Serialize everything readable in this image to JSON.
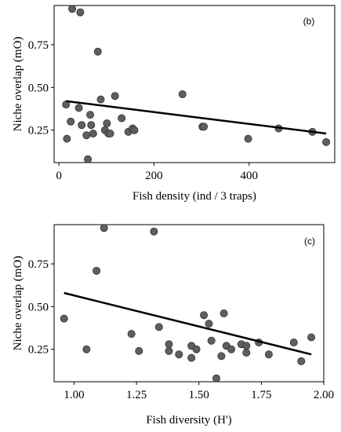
{
  "chart_data": [
    {
      "type": "scatter",
      "panel_label": "(b)",
      "xlabel": "Fish density (ind / 3 traps)",
      "ylabel": "Niche overlap (mO)",
      "xlim": [
        -10,
        580
      ],
      "ylim": [
        0.06,
        0.98
      ],
      "x_ticks": [
        0,
        200,
        400
      ],
      "x_tick_labels": [
        "0",
        "200",
        "400"
      ],
      "y_ticks": [
        0.25,
        0.5,
        0.75
      ],
      "y_tick_labels": [
        "0.25",
        "0.50",
        "0.75"
      ],
      "grid": false,
      "point_color": "#5f5f5f",
      "line_color": "#000000",
      "points": [
        {
          "x": 15,
          "y": 0.4
        },
        {
          "x": 17,
          "y": 0.2
        },
        {
          "x": 25,
          "y": 0.3
        },
        {
          "x": 28,
          "y": 0.96
        },
        {
          "x": 42,
          "y": 0.38
        },
        {
          "x": 45,
          "y": 0.94
        },
        {
          "x": 48,
          "y": 0.28
        },
        {
          "x": 58,
          "y": 0.22
        },
        {
          "x": 61,
          "y": 0.08
        },
        {
          "x": 66,
          "y": 0.34
        },
        {
          "x": 68,
          "y": 0.28
        },
        {
          "x": 72,
          "y": 0.23
        },
        {
          "x": 82,
          "y": 0.71
        },
        {
          "x": 88,
          "y": 0.43
        },
        {
          "x": 97,
          "y": 0.25
        },
        {
          "x": 101,
          "y": 0.29
        },
        {
          "x": 104,
          "y": 0.23
        },
        {
          "x": 108,
          "y": 0.23
        },
        {
          "x": 118,
          "y": 0.45
        },
        {
          "x": 132,
          "y": 0.32
        },
        {
          "x": 146,
          "y": 0.24
        },
        {
          "x": 155,
          "y": 0.26
        },
        {
          "x": 159,
          "y": 0.25
        },
        {
          "x": 260,
          "y": 0.46
        },
        {
          "x": 302,
          "y": 0.27
        },
        {
          "x": 305,
          "y": 0.27
        },
        {
          "x": 398,
          "y": 0.2
        },
        {
          "x": 462,
          "y": 0.26
        },
        {
          "x": 533,
          "y": 0.24
        },
        {
          "x": 562,
          "y": 0.18
        }
      ],
      "fit_line": {
        "x": [
          15,
          562
        ],
        "y": [
          0.42,
          0.23
        ]
      }
    },
    {
      "type": "scatter",
      "panel_label": "(c)",
      "xlabel": "Fish diversity (H')",
      "ylabel": "Niche overlap (mO)",
      "xlim": [
        0.92,
        2.0
      ],
      "ylim": [
        0.06,
        0.98
      ],
      "x_ticks": [
        1.0,
        1.25,
        1.5,
        1.75,
        2.0
      ],
      "x_tick_labels": [
        "1.00",
        "1.25",
        "1.50",
        "1.75",
        "2.00"
      ],
      "y_ticks": [
        0.25,
        0.5,
        0.75
      ],
      "y_tick_labels": [
        "0.25",
        "0.50",
        "0.75"
      ],
      "grid": false,
      "point_color": "#5f5f5f",
      "line_color": "#000000",
      "points": [
        {
          "x": 0.96,
          "y": 0.43
        },
        {
          "x": 1.05,
          "y": 0.25
        },
        {
          "x": 1.09,
          "y": 0.71
        },
        {
          "x": 1.12,
          "y": 0.96
        },
        {
          "x": 1.23,
          "y": 0.34
        },
        {
          "x": 1.26,
          "y": 0.24
        },
        {
          "x": 1.32,
          "y": 0.94
        },
        {
          "x": 1.34,
          "y": 0.38
        },
        {
          "x": 1.38,
          "y": 0.24
        },
        {
          "x": 1.38,
          "y": 0.28
        },
        {
          "x": 1.42,
          "y": 0.22
        },
        {
          "x": 1.47,
          "y": 0.27
        },
        {
          "x": 1.47,
          "y": 0.2
        },
        {
          "x": 1.49,
          "y": 0.25
        },
        {
          "x": 1.52,
          "y": 0.45
        },
        {
          "x": 1.54,
          "y": 0.4
        },
        {
          "x": 1.55,
          "y": 0.3
        },
        {
          "x": 1.57,
          "y": 0.08
        },
        {
          "x": 1.59,
          "y": 0.21
        },
        {
          "x": 1.6,
          "y": 0.46
        },
        {
          "x": 1.61,
          "y": 0.27
        },
        {
          "x": 1.63,
          "y": 0.25
        },
        {
          "x": 1.67,
          "y": 0.28
        },
        {
          "x": 1.69,
          "y": 0.27
        },
        {
          "x": 1.69,
          "y": 0.23
        },
        {
          "x": 1.74,
          "y": 0.29
        },
        {
          "x": 1.78,
          "y": 0.22
        },
        {
          "x": 1.88,
          "y": 0.29
        },
        {
          "x": 1.91,
          "y": 0.18
        },
        {
          "x": 1.95,
          "y": 0.32
        }
      ],
      "fit_line": {
        "x": [
          0.96,
          1.95
        ],
        "y": [
          0.58,
          0.22
        ]
      }
    }
  ]
}
